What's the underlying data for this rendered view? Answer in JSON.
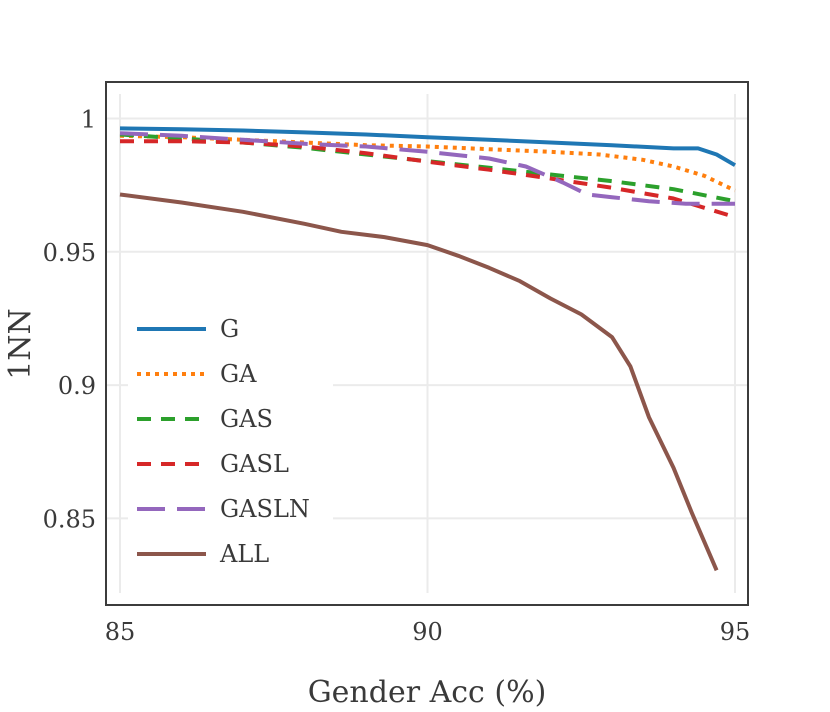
{
  "chart_data": {
    "type": "line",
    "title": "",
    "xlabel": "Gender Acc (%)",
    "ylabel": "1NN",
    "xlim": [
      85,
      95
    ],
    "ylim": [
      0.8175,
      1.0137
    ],
    "xticks": [
      85,
      90,
      95
    ],
    "xtick_labels": [
      "85",
      "90",
      "95"
    ],
    "yticks": [
      0.85,
      0.9,
      0.95,
      1.0
    ],
    "ytick_labels": [
      "0.85",
      "0.9",
      "0.95",
      "1"
    ],
    "grid": true,
    "legend_position": "center-left",
    "series": [
      {
        "name": "G",
        "color": "#1f77b4",
        "dash": "solid",
        "x": [
          85,
          86,
          87,
          88,
          89,
          90,
          91,
          92,
          93,
          94,
          94.4,
          94.7,
          95
        ],
        "y": [
          0.9963,
          0.996,
          0.9955,
          0.9948,
          0.994,
          0.993,
          0.992,
          0.991,
          0.99,
          0.9888,
          0.9888,
          0.9865,
          0.9825
        ]
      },
      {
        "name": "GA",
        "color": "#ff7f0e",
        "dash": "dot",
        "x": [
          85,
          86,
          87,
          88,
          89,
          90,
          91,
          92,
          92.8,
          93.5,
          94,
          94.5,
          95
        ],
        "y": [
          0.9935,
          0.993,
          0.992,
          0.991,
          0.99,
          0.9895,
          0.9885,
          0.9875,
          0.9865,
          0.9845,
          0.982,
          0.9785,
          0.973
        ]
      },
      {
        "name": "GAS",
        "color": "#2ca02c",
        "dash": "dash",
        "x": [
          85,
          86,
          87,
          88,
          89,
          90,
          91,
          92,
          93,
          94,
          95
        ],
        "y": [
          0.994,
          0.9925,
          0.991,
          0.989,
          0.9865,
          0.984,
          0.9815,
          0.979,
          0.9765,
          0.9735,
          0.969
        ]
      },
      {
        "name": "GASL",
        "color": "#d62728",
        "dash": "dash",
        "x": [
          85,
          86,
          87,
          88,
          89,
          90,
          91,
          92,
          93,
          94,
          95
        ],
        "y": [
          0.9915,
          0.9915,
          0.991,
          0.9895,
          0.987,
          0.9838,
          0.9808,
          0.9775,
          0.974,
          0.97,
          0.963
        ]
      },
      {
        "name": "GASLN",
        "color": "#9467bd",
        "dash": "longdash",
        "x": [
          85,
          86,
          87,
          88,
          89,
          90,
          91,
          91.6,
          92.2,
          92.6,
          93,
          93.6,
          94.2,
          95
        ],
        "y": [
          0.9945,
          0.9935,
          0.992,
          0.9905,
          0.9895,
          0.9875,
          0.985,
          0.982,
          0.976,
          0.9715,
          0.9705,
          0.969,
          0.968,
          0.968
        ]
      },
      {
        "name": "ALL",
        "color": "#8c564b",
        "dash": "solid",
        "x": [
          85,
          86,
          87,
          88,
          88.6,
          89.3,
          90,
          90.5,
          91,
          91.5,
          92,
          92.5,
          93,
          93.3,
          93.6,
          94,
          94.3,
          94.7
        ],
        "y": [
          0.9715,
          0.9685,
          0.965,
          0.9605,
          0.9575,
          0.9555,
          0.9525,
          0.9485,
          0.944,
          0.939,
          0.9325,
          0.9265,
          0.918,
          0.907,
          0.888,
          0.869,
          0.852,
          0.8305
        ]
      }
    ]
  }
}
